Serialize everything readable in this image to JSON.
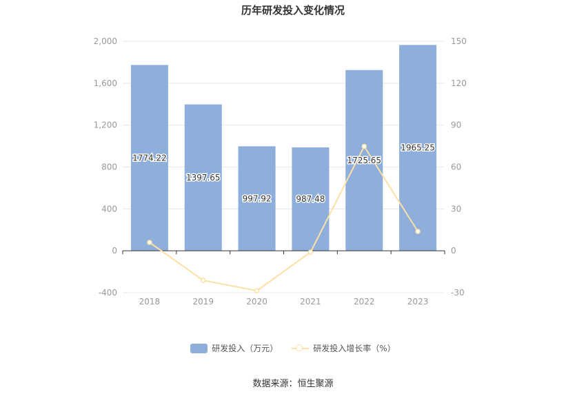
{
  "colors": {
    "bar": "#8eaedb",
    "line": "#fde0a6",
    "axis_text": "#999999",
    "grid": "#e8e8e8",
    "axis_line": "#333333"
  },
  "chart_data": {
    "type": "bar",
    "title": "历年研发投入变化情况",
    "categories": [
      "2018",
      "2019",
      "2020",
      "2021",
      "2022",
      "2023"
    ],
    "series": [
      {
        "name": "研发投入（万元）",
        "type": "bar",
        "axis": "left",
        "values": [
          1774.22,
          1397.65,
          997.92,
          987.48,
          1725.65,
          1965.25
        ],
        "labels": [
          "1774.22",
          "1397.65",
          "997.92",
          "987.48",
          "1725.65",
          "1965.25"
        ]
      },
      {
        "name": "研发投入增长率（%）",
        "type": "line",
        "axis": "right",
        "values": [
          6.0,
          -21.2,
          -28.6,
          -1.0,
          74.8,
          13.9
        ]
      }
    ],
    "y_left": {
      "range": [
        -400,
        2000
      ],
      "ticks": [
        "-400",
        "0",
        "400",
        "800",
        "1,200",
        "1,600",
        "2,000"
      ],
      "tick_values": [
        -400,
        0,
        400,
        800,
        1200,
        1600,
        2000
      ]
    },
    "y_right": {
      "range": [
        -30,
        150
      ],
      "ticks": [
        "-30",
        "0",
        "30",
        "60",
        "90",
        "120",
        "150"
      ],
      "tick_values": [
        -30,
        0,
        30,
        60,
        90,
        120,
        150
      ]
    },
    "grid": true,
    "legend": "bottom"
  },
  "source_text": "数据来源：恒生聚源"
}
